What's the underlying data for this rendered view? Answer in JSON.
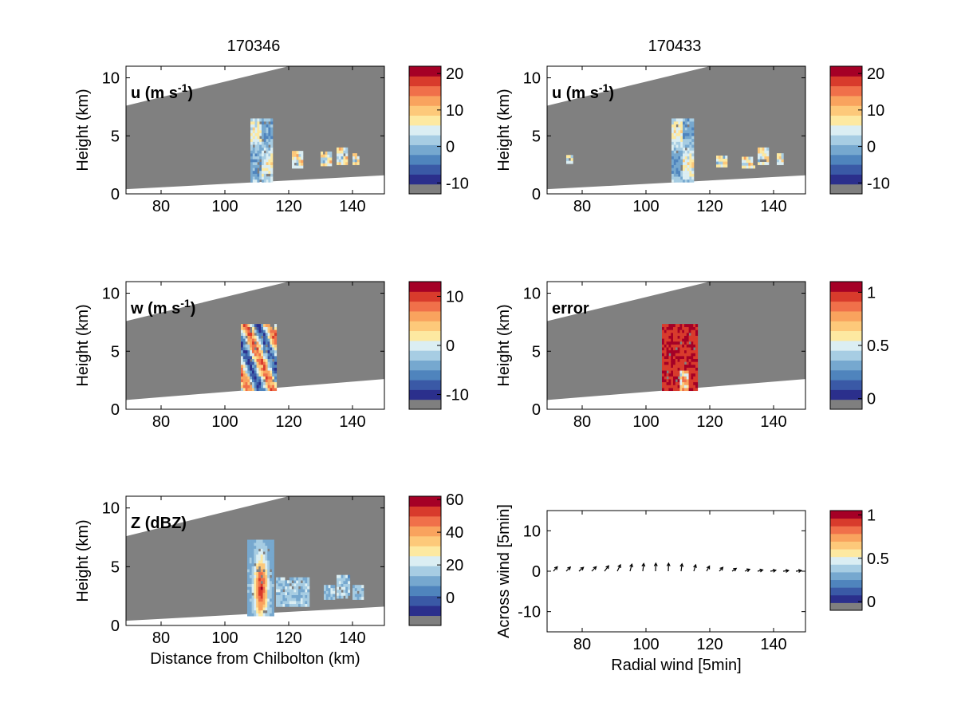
{
  "figure": {
    "column_titles": [
      "170346",
      "170433"
    ]
  },
  "palette": {
    "colorbar": [
      "#7f7f7f",
      "#2b2f8c",
      "#3a59a6",
      "#4f84bd",
      "#76a8cf",
      "#a7cde3",
      "#dbeef3",
      "#fde9a1",
      "#fdc97a",
      "#f9a35e",
      "#f0704a",
      "#d83b2c",
      "#a50026"
    ],
    "mask_gray": "#808080",
    "white": "#ffffff"
  },
  "chart_data": [
    {
      "id": "u-170346",
      "type": "heatmap",
      "label": "u (m s",
      "label_sup": "-1",
      "label_end": ")",
      "ylabel": "Height (km)",
      "xlabel": "",
      "xlim": [
        69,
        150
      ],
      "ylim": [
        0,
        11
      ],
      "xticks": [
        80,
        100,
        120,
        140
      ],
      "yticks": [
        0,
        5,
        10
      ],
      "colorbar": {
        "ticks": [
          -10,
          0,
          10,
          20
        ],
        "range": [
          -13,
          22
        ]
      },
      "echo_cells": [
        {
          "x": [
            108,
            115
          ],
          "y": [
            1,
            6.5
          ],
          "value": 2
        },
        {
          "x": [
            121,
            124
          ],
          "y": [
            2.2,
            3.5
          ],
          "value": 6
        },
        {
          "x": [
            130,
            133
          ],
          "y": [
            2.4,
            3.5
          ],
          "value": 6
        },
        {
          "x": [
            135,
            138
          ],
          "y": [
            2.5,
            4
          ],
          "value": 6
        },
        {
          "x": [
            140,
            142
          ],
          "y": [
            2.5,
            3.3
          ],
          "value": 6
        }
      ]
    },
    {
      "id": "u-170433",
      "type": "heatmap",
      "label": "u (m s",
      "label_sup": "-1",
      "label_end": ")",
      "ylabel": "Height (km)",
      "xlabel": "",
      "xlim": [
        69,
        150
      ],
      "ylim": [
        0,
        11
      ],
      "xticks": [
        80,
        100,
        120,
        140
      ],
      "yticks": [
        0,
        5,
        10
      ],
      "colorbar": {
        "ticks": [
          -10,
          0,
          10,
          20
        ],
        "range": [
          -13,
          22
        ]
      },
      "echo_cells": [
        {
          "x": [
            75,
            76.5
          ],
          "y": [
            2.6,
            3.2
          ],
          "value": 6
        },
        {
          "x": [
            108,
            115
          ],
          "y": [
            1,
            6.5
          ],
          "value": 2
        },
        {
          "x": [
            122,
            125
          ],
          "y": [
            2.3,
            3.2
          ],
          "value": 6
        },
        {
          "x": [
            130,
            134
          ],
          "y": [
            2.2,
            3.2
          ],
          "value": 6
        },
        {
          "x": [
            135,
            138
          ],
          "y": [
            2.5,
            4
          ],
          "value": 6
        },
        {
          "x": [
            141,
            143
          ],
          "y": [
            2.5,
            3.3
          ],
          "value": 6
        }
      ]
    },
    {
      "id": "w-170346",
      "type": "heatmap",
      "label": "w (m s",
      "label_sup": "-1",
      "label_end": ")",
      "ylabel": "Height (km)",
      "xlabel": "",
      "xlim": [
        69,
        150
      ],
      "ylim": [
        0,
        11
      ],
      "xticks": [
        80,
        100,
        120,
        140
      ],
      "yticks": [
        0,
        5,
        10
      ],
      "colorbar": {
        "ticks": [
          -10,
          0,
          10
        ],
        "range": [
          -13,
          13
        ]
      },
      "echo_cells": [
        {
          "x": [
            105,
            116
          ],
          "y": [
            1.6,
            7.2
          ],
          "value": 0
        }
      ]
    },
    {
      "id": "error-170433",
      "type": "heatmap",
      "label": "error",
      "label_sup": "",
      "label_end": "",
      "ylabel": "Height (km)",
      "xlabel": "",
      "xlim": [
        69,
        150
      ],
      "ylim": [
        0,
        11
      ],
      "xticks": [
        80,
        100,
        120,
        140
      ],
      "yticks": [
        0,
        5,
        10
      ],
      "colorbar": {
        "ticks": [
          0,
          0.5,
          1
        ],
        "range": [
          -0.1,
          1.1
        ]
      },
      "echo_cells": [
        {
          "x": [
            105,
            116
          ],
          "y": [
            1.6,
            7.2
          ],
          "value": 1
        }
      ]
    },
    {
      "id": "z-170346",
      "type": "heatmap",
      "label": "Z (dBZ)",
      "label_sup": "",
      "label_end": "",
      "ylabel": "Height (km)",
      "xlabel": "Distance from Chilbolton (km)",
      "xlim": [
        69,
        150
      ],
      "ylim": [
        0,
        11
      ],
      "xticks": [
        80,
        100,
        120,
        140
      ],
      "yticks": [
        0,
        5,
        10
      ],
      "colorbar": {
        "ticks": [
          0,
          20,
          40,
          60
        ],
        "range": [
          -17,
          62
        ]
      },
      "echo_cells": [
        {
          "x": [
            107,
            115
          ],
          "y": [
            0.8,
            7.2
          ],
          "value": 35
        },
        {
          "x": [
            116,
            126
          ],
          "y": [
            1.6,
            4.0
          ],
          "value": 12
        },
        {
          "x": [
            131,
            134
          ],
          "y": [
            2.2,
            3.4
          ],
          "value": 15
        },
        {
          "x": [
            135,
            139
          ],
          "y": [
            2.3,
            4.2
          ],
          "value": 18
        },
        {
          "x": [
            140,
            143
          ],
          "y": [
            2.2,
            3.4
          ],
          "value": 15
        }
      ]
    },
    {
      "id": "quiver-170433",
      "type": "scatter",
      "label": "",
      "ylabel": "Across wind [5min]",
      "xlabel": "Radial wind [5min]",
      "xlim": [
        69,
        150
      ],
      "ylim": [
        -15,
        15
      ],
      "xticks": [
        80,
        100,
        120,
        140
      ],
      "yticks": [
        -10,
        0,
        10
      ],
      "colorbar": {
        "ticks": [
          0,
          0.5,
          1
        ],
        "range": [
          -0.1,
          1.05
        ]
      },
      "vectors": {
        "x": [
          71,
          75,
          79,
          83,
          87,
          91,
          95,
          99,
          103,
          107,
          111,
          115,
          119,
          123,
          127,
          131,
          135,
          139,
          143,
          147
        ],
        "u": [
          1.2,
          1.3,
          1.4,
          1.4,
          1.3,
          1.0,
          0.6,
          0.3,
          0.1,
          0.1,
          0.3,
          0.6,
          0.9,
          1.1,
          1.3,
          1.5,
          1.6,
          1.7,
          1.7,
          1.7
        ],
        "v": [
          1.4,
          1.3,
          1.2,
          1.4,
          1.7,
          2.0,
          2.2,
          2.4,
          2.5,
          2.5,
          2.3,
          2.0,
          1.6,
          1.2,
          0.9,
          0.6,
          0.4,
          0.3,
          0.2,
          0.2
        ]
      }
    }
  ]
}
